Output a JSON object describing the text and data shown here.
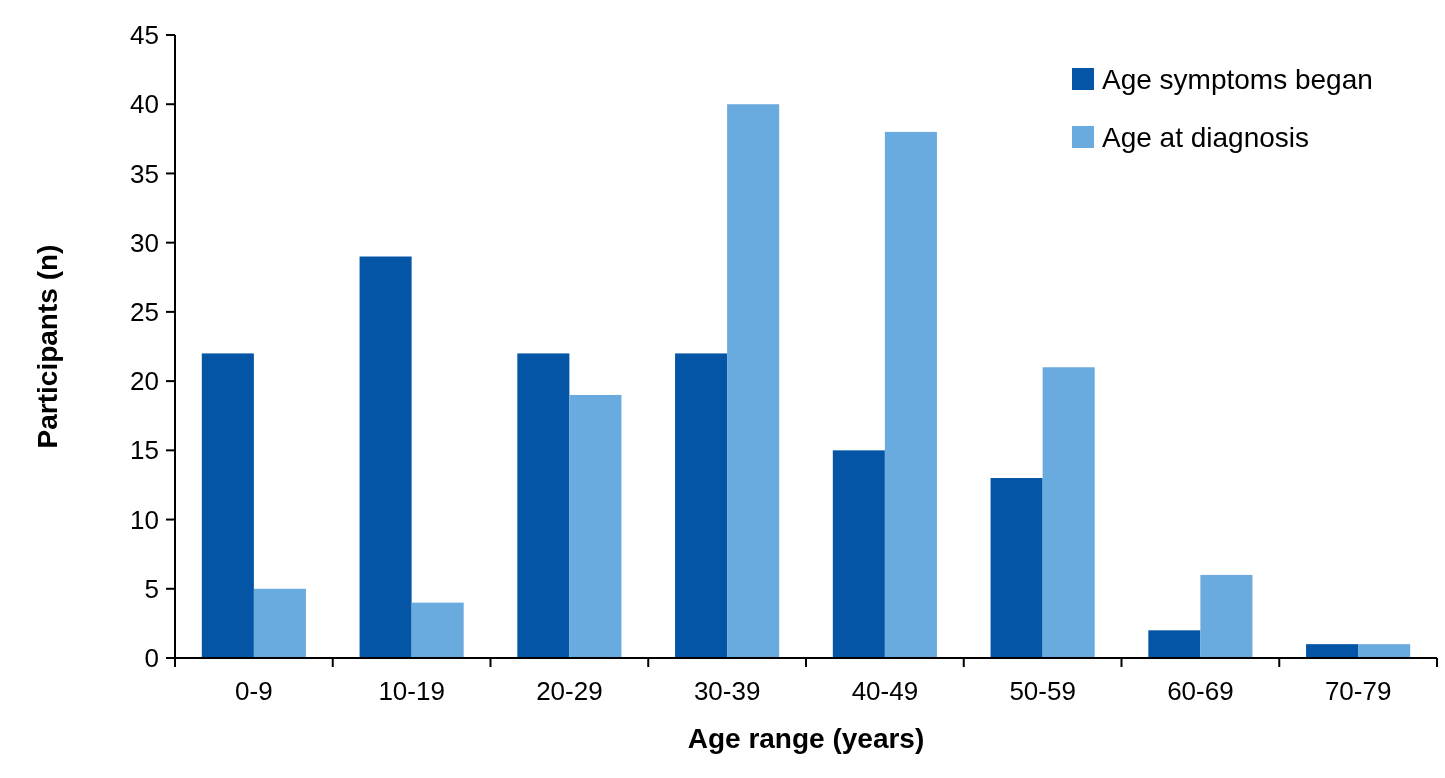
{
  "chart_data": {
    "type": "bar",
    "xlabel": "Age range (years)",
    "ylabel": "Participants (n)",
    "categories": [
      "0-9",
      "10-19",
      "20-29",
      "30-39",
      "40-49",
      "50-59",
      "60-69",
      "70-79"
    ],
    "series": [
      {
        "name": "Age symptoms began",
        "color": "#0455a6",
        "values": [
          22,
          29,
          22,
          22,
          15,
          13,
          2,
          1
        ]
      },
      {
        "name": "Age at diagnosis",
        "color": "#69aadf",
        "values": [
          5,
          4,
          19,
          40,
          38,
          21,
          6,
          1
        ]
      }
    ],
    "ylim": [
      0,
      45
    ],
    "yticks": [
      0,
      5,
      10,
      15,
      20,
      25,
      30,
      35,
      40,
      45
    ],
    "grid": false,
    "legend": "top right"
  }
}
